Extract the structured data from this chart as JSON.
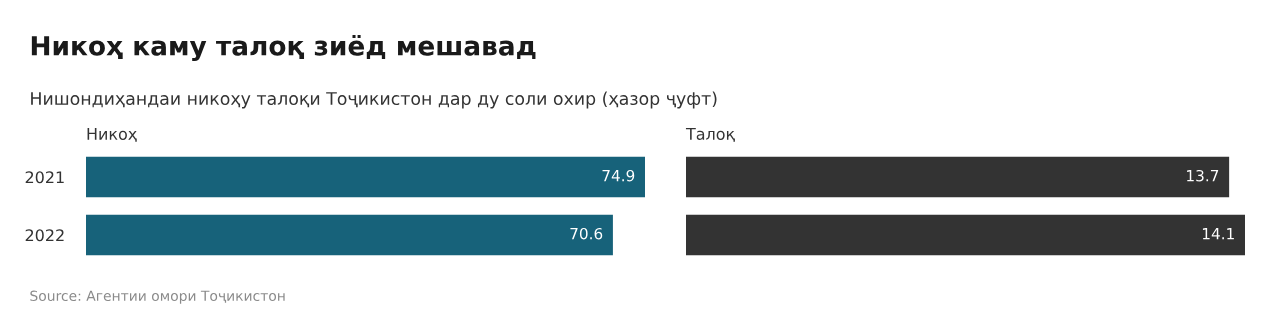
{
  "chart_data": [
    {
      "type": "bar",
      "orientation": "horizontal",
      "title": "Никоҳ каму талоқ зиёд мешавад",
      "subtitle": "Нишондиҳандаи никоҳу талоқи Тоҷикистон дар ду соли охир (ҳазор ҷуфт)",
      "xlabel": "Никоҳ",
      "categories": [
        "2021",
        "2022"
      ],
      "series": [
        {
          "color": "#17627a",
          "values": [
            74.9,
            70.6
          ]
        }
      ],
      "data_labels": true,
      "tick_labels": "y",
      "annotations": [
        "Source: Агентии омори Тоҷикистон"
      ]
    },
    {
      "type": "bar",
      "orientation": "horizontal",
      "xlabel": "Талоқ",
      "categories": [
        "2021",
        "2022"
      ],
      "series": [
        {
          "color": "#333333",
          "values": [
            13.7,
            14.1
          ]
        }
      ],
      "data_labels": true,
      "tick_labels": false
    }
  ]
}
